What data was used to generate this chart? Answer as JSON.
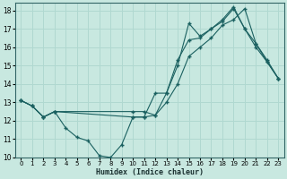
{
  "xlabel": "Humidex (Indice chaleur)",
  "xlim": [
    -0.5,
    23.5
  ],
  "ylim": [
    10,
    18.4
  ],
  "yticks": [
    10,
    11,
    12,
    13,
    14,
    15,
    16,
    17,
    18
  ],
  "xticks": [
    0,
    1,
    2,
    3,
    4,
    5,
    6,
    7,
    8,
    9,
    10,
    11,
    12,
    13,
    14,
    15,
    16,
    17,
    18,
    19,
    20,
    21,
    22,
    23
  ],
  "bg_color": "#c8e8e0",
  "line_color": "#1a6060",
  "grid_color": "#b0d8d0",
  "line1_x": [
    0,
    1,
    2,
    3,
    4,
    5,
    6,
    7,
    8,
    9,
    10,
    11,
    12,
    13,
    14,
    15,
    16,
    17,
    18,
    19,
    20,
    21,
    22,
    23
  ],
  "line1_y": [
    13.1,
    12.8,
    12.2,
    12.5,
    11.6,
    11.1,
    10.9,
    10.1,
    10.0,
    10.7,
    12.2,
    12.2,
    13.5,
    13.5,
    15.3,
    16.4,
    16.5,
    17.0,
    17.4,
    18.1,
    17.0,
    16.2,
    15.3,
    14.3
  ],
  "line2_x": [
    0,
    1,
    2,
    3,
    10,
    11,
    12,
    13,
    14,
    15,
    16,
    17,
    18,
    19,
    20,
    21,
    22,
    23
  ],
  "line2_y": [
    13.1,
    12.8,
    12.2,
    12.5,
    12.5,
    12.5,
    12.3,
    13.5,
    15.0,
    17.3,
    16.6,
    17.0,
    17.5,
    18.2,
    17.0,
    16.0,
    15.2,
    14.3
  ],
  "line3_x": [
    0,
    1,
    2,
    3,
    10,
    11,
    12,
    13,
    14,
    15,
    16,
    17,
    18,
    19,
    20,
    21,
    22,
    23
  ],
  "line3_y": [
    13.1,
    12.8,
    12.2,
    12.5,
    12.2,
    12.2,
    12.3,
    13.0,
    14.0,
    15.5,
    16.0,
    16.5,
    17.2,
    17.5,
    18.1,
    16.2,
    15.2,
    14.3
  ]
}
